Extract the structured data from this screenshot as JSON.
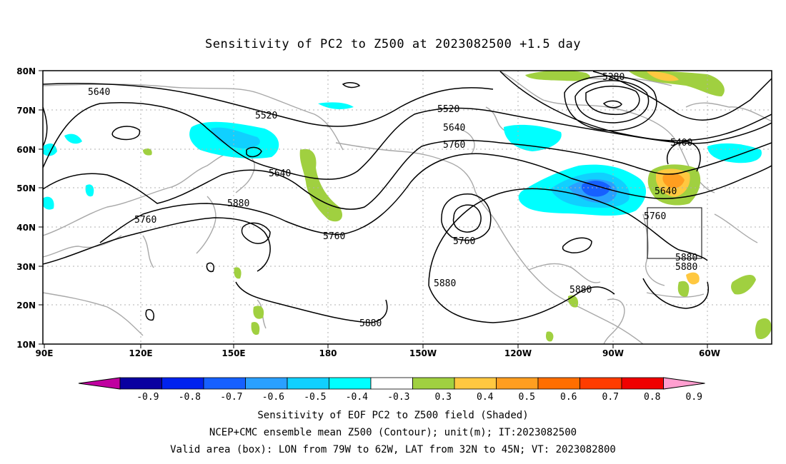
{
  "title": "Sensitivity of PC2 to Z500 at 2023082500 +1.5 day",
  "lon_ticks": [
    "90E",
    "120E",
    "150E",
    "180",
    "150W",
    "120W",
    "90W",
    "60W"
  ],
  "lat_ticks": [
    "80N",
    "70N",
    "60N",
    "50N",
    "40N",
    "30N",
    "20N",
    "10N"
  ],
  "contour_labels": [
    "5640",
    "5520",
    "5280",
    "5520",
    "5640",
    "5760",
    "5400",
    "5640",
    "5880",
    "5760",
    "5760",
    "5760",
    "5640",
    "5760",
    "5880",
    "5880",
    "5880",
    "5880"
  ],
  "colorbar": {
    "labels": [
      "-0.9",
      "-0.8",
      "-0.7",
      "-0.6",
      "-0.5",
      "-0.4",
      "-0.3",
      "0.3",
      "0.4",
      "0.5",
      "0.6",
      "0.7",
      "0.8",
      "0.9"
    ],
    "colors": [
      "#0a00a0",
      "#0022ee",
      "#1660ff",
      "#2aa0ff",
      "#10d0ff",
      "#00ffff",
      "#ffffff",
      "#a0d040",
      "#ffc840",
      "#ff9e20",
      "#ff6e00",
      "#ff3c00",
      "#f00000"
    ],
    "low_extend_color": "#c000a0",
    "high_extend_color": "#ff9fd0"
  },
  "captions": [
    "Sensitivity of EOF PC2 to Z500 field (Shaded)",
    "NCEP+CMC ensemble mean Z500 (Contour); unit(m); IT:2023082500",
    "Valid area (box): LON from 79W to 62W, LAT from 32N to 45N; VT: 2023082800"
  ]
}
